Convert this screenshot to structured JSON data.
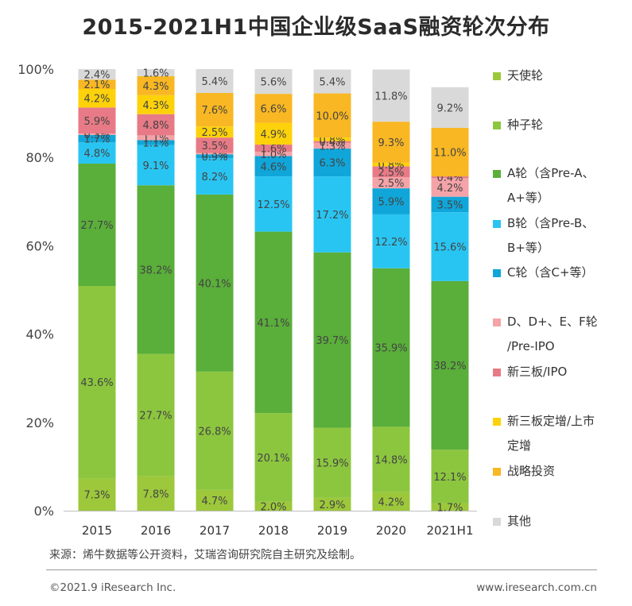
{
  "chart_data": {
    "type": "bar",
    "stacked": true,
    "title": "2015-2021H1中国企业级SaaS融资轮次分布",
    "categories": [
      "2015",
      "2016",
      "2017",
      "2018",
      "2019",
      "2020",
      "2021H1"
    ],
    "y_ticks": [
      "0%",
      "20%",
      "40%",
      "60%",
      "80%",
      "100%"
    ],
    "ylim": [
      0,
      100
    ],
    "legend_position": "right",
    "series": [
      {
        "name": "天使轮",
        "color": "#9dc83b",
        "values": [
          7.3,
          7.8,
          4.7,
          2.0,
          2.9,
          4.2,
          1.7
        ],
        "labels": [
          "7.3%",
          "7.8%",
          "4.7%",
          "2.0%",
          "2.9%",
          "4.2%",
          "1.7%"
        ]
      },
      {
        "name": "种子轮",
        "color": "#8cc63f",
        "values": [
          43.6,
          27.7,
          26.8,
          20.1,
          15.9,
          14.8,
          12.1
        ],
        "labels": [
          "43.6%",
          "27.7%",
          "26.8%",
          "20.1%",
          "15.9%",
          "14.8%",
          "12.1%"
        ]
      },
      {
        "name": "A轮（含Pre-A、\nA+等）",
        "color": "#5aae3a",
        "values": [
          27.7,
          38.2,
          40.1,
          41.1,
          39.7,
          35.9,
          38.2
        ],
        "labels": [
          "27.7%",
          "38.2%",
          "40.1%",
          "41.1%",
          "39.7%",
          "35.9%",
          "38.2%"
        ]
      },
      {
        "name": "B轮（含Pre-B、\nB+等）",
        "color": "#29c5f2",
        "values": [
          4.8,
          9.1,
          8.2,
          12.5,
          17.2,
          12.2,
          15.6
        ],
        "labels": [
          "4.8%",
          "9.1%",
          "8.2%",
          "12.5%",
          "17.2%",
          "12.2%",
          "15.6%"
        ]
      },
      {
        "name": "C轮（含C+等）",
        "color": "#10a6d9",
        "values": [
          1.7,
          1.1,
          0.9,
          4.6,
          6.3,
          5.9,
          3.5
        ],
        "labels": [
          "1.7%",
          "1.1%",
          "0.9%",
          "4.6%",
          "6.3%",
          "5.9%",
          "3.5%"
        ]
      },
      {
        "name": "D、D+、E、F轮\n/Pre-IPO",
        "color": "#f4a3a8",
        "values": [
          0.3,
          1.1,
          0.3,
          1.0,
          1.3,
          2.5,
          4.2
        ],
        "labels": [
          "0.3%",
          "1.1%",
          "0.3%",
          "1.0%",
          "1.3%",
          "2.5%",
          "4.2%"
        ]
      },
      {
        "name": "新三板/IPO",
        "color": "#e77a86",
        "values": [
          5.9,
          4.8,
          3.5,
          1.6,
          0.4,
          2.5,
          0.4
        ],
        "labels": [
          "5.9%",
          "4.8%",
          "3.5%",
          "1.6%",
          "0.4%",
          "2.5%",
          "0.4%"
        ]
      },
      {
        "name": "新三板定增/上市\n定增",
        "color": "#fdd20a",
        "values": [
          4.2,
          4.3,
          2.5,
          4.9,
          0.8,
          0.8,
          0
        ],
        "labels": [
          "4.2%",
          "4.3%",
          "2.5%",
          "4.9%",
          "0.8%",
          "0.8%",
          ""
        ]
      },
      {
        "name": "战略投资",
        "color": "#f8b723",
        "values": [
          2.1,
          4.3,
          7.6,
          6.6,
          10.0,
          9.3,
          11.0
        ],
        "labels": [
          "2.1%",
          "4.3%",
          "7.6%",
          "6.6%",
          "10.0%",
          "9.3%",
          "11.0%"
        ]
      },
      {
        "name": "其他",
        "color": "#d9d9d9",
        "values": [
          2.4,
          1.6,
          5.4,
          5.6,
          5.4,
          11.8,
          9.2
        ],
        "labels": [
          "2.4%",
          "1.6%",
          "5.4%",
          "5.6%",
          "5.4%",
          "11.8%",
          "9.2%"
        ]
      }
    ]
  },
  "footer": {
    "source": "来源：烯牛数据等公开资料，艾瑞咨询研究院自主研究及绘制。",
    "copyright": "©2021.9 iResearch Inc.",
    "website": "www.iresearch.com.cn"
  }
}
